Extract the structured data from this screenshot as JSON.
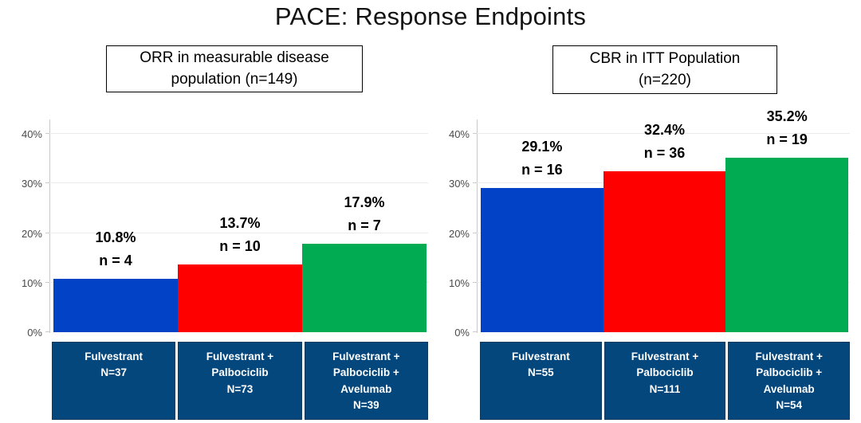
{
  "title": "PACE: Response Endpoints",
  "style": {
    "title_color": "#131313",
    "axis_color": "#c9c9c9",
    "grid_color": "#ebebeb",
    "tick_text_color": "#4a4a4a",
    "category_box_bg": "#04477d",
    "category_box_border": "#123a5f",
    "bar_blue": "#0242c6",
    "bar_red": "#fe0000",
    "bar_green": "#00ab51"
  },
  "chart_data": [
    {
      "type": "bar",
      "title": "ORR in measurable disease population (n=149)",
      "title_lines": [
        "ORR in measurable disease",
        "population (n=149)"
      ],
      "xlabel": "",
      "ylabel": "",
      "ylim": [
        0,
        40
      ],
      "yticks": [
        {
          "value": 0,
          "label": "0%"
        },
        {
          "value": 10,
          "label": "10%"
        },
        {
          "value": 20,
          "label": "20%"
        },
        {
          "value": 30,
          "label": "30%"
        },
        {
          "value": 40,
          "label": "40%"
        }
      ],
      "grid": true,
      "legend": "none",
      "bars": [
        {
          "value": 10.8,
          "value_label": "10.8%",
          "n_label": "n = 4",
          "color": "#0242c6",
          "category_lines": [
            "Fulvestrant",
            "N=37"
          ]
        },
        {
          "value": 13.7,
          "value_label": "13.7%",
          "n_label": "n = 10",
          "color": "#fe0000",
          "category_lines": [
            "Fulvestrant +",
            "Palbociclib",
            "N=73"
          ]
        },
        {
          "value": 17.9,
          "value_label": "17.9%",
          "n_label": "n = 7",
          "color": "#00ab51",
          "category_lines": [
            "Fulvestrant +",
            "Palbociclib +",
            "Avelumab",
            "N=39"
          ]
        }
      ]
    },
    {
      "type": "bar",
      "title": "CBR in ITT Population (n=220)",
      "title_lines": [
        "CBR in ITT Population",
        "(n=220)"
      ],
      "xlabel": "",
      "ylabel": "",
      "ylim": [
        0,
        40
      ],
      "yticks": [
        {
          "value": 0,
          "label": "0%"
        },
        {
          "value": 10,
          "label": "10%"
        },
        {
          "value": 20,
          "label": "20%"
        },
        {
          "value": 30,
          "label": "30%"
        },
        {
          "value": 40,
          "label": "40%"
        }
      ],
      "grid": true,
      "legend": "none",
      "bars": [
        {
          "value": 29.1,
          "value_label": "29.1%",
          "n_label": "n = 16",
          "color": "#0242c6",
          "category_lines": [
            "Fulvestrant",
            "N=55"
          ]
        },
        {
          "value": 32.4,
          "value_label": "32.4%",
          "n_label": "n = 36",
          "color": "#fe0000",
          "category_lines": [
            "Fulvestrant +",
            "Palbociclib",
            "N=111"
          ]
        },
        {
          "value": 35.2,
          "value_label": "35.2%",
          "n_label": "n = 19",
          "color": "#00ab51",
          "category_lines": [
            "Fulvestrant +",
            "Palbociclib +",
            "Avelumab",
            "N=54"
          ]
        }
      ]
    }
  ]
}
